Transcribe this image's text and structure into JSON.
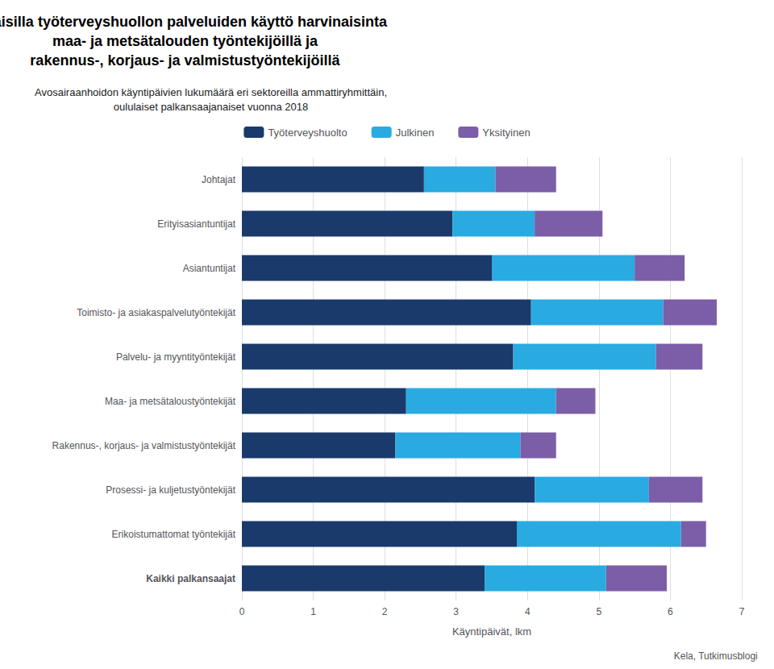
{
  "chart_data": {
    "type": "bar",
    "orientation": "horizontal",
    "stacked": true,
    "title": "Naisilla työterveyshuollon palveluiden käyttö harvinaisinta\nmaa- ja metsätalouden työntekijöillä ja\nrakennus-, korjaus- ja valmistustyöntekijöillä",
    "subtitle": "Avosairaanhoidon käyntipäivien lukumäärä eri sektoreilla ammattiryhmittäin,\noululaiset palkansaajanaiset vuonna 2018",
    "categories": [
      "Johtajat",
      "Erityisasiantuntijat",
      "Asiantuntijat",
      "Toimisto- ja asiakaspalvelutyöntekijät",
      "Palvelu- ja myyntityöntekijät",
      "Maa- ja metsätaloustyöntekijät",
      "Rakennus-, korjaus- ja valmistustyöntekijät",
      "Prosessi- ja kuljetustyöntekijät",
      "Erikoistumattomat työntekijät",
      "Kaikki palkansaajat"
    ],
    "series": [
      {
        "name": "Työterveyshuolto",
        "color": "#1a3a6b",
        "values": [
          2.55,
          2.95,
          3.5,
          4.05,
          3.8,
          2.3,
          2.15,
          4.1,
          3.85,
          3.4
        ]
      },
      {
        "name": "Julkinen",
        "color": "#29aae1",
        "values": [
          1.0,
          1.15,
          2.0,
          1.85,
          2.0,
          2.1,
          1.75,
          1.6,
          2.3,
          1.7
        ]
      },
      {
        "name": "Yksityinen",
        "color": "#7b5ea7",
        "values": [
          0.85,
          0.95,
          0.7,
          0.75,
          0.65,
          0.55,
          0.5,
          0.75,
          0.35,
          0.85
        ]
      }
    ],
    "xlabel": "Käyntipäivät, lkm",
    "xlim": [
      0,
      7
    ],
    "xticks": [
      0,
      1,
      2,
      3,
      4,
      5,
      6,
      7
    ],
    "grid": true,
    "legend": "top",
    "annotations": [
      "Kela, Tutkimusblogi"
    ]
  }
}
